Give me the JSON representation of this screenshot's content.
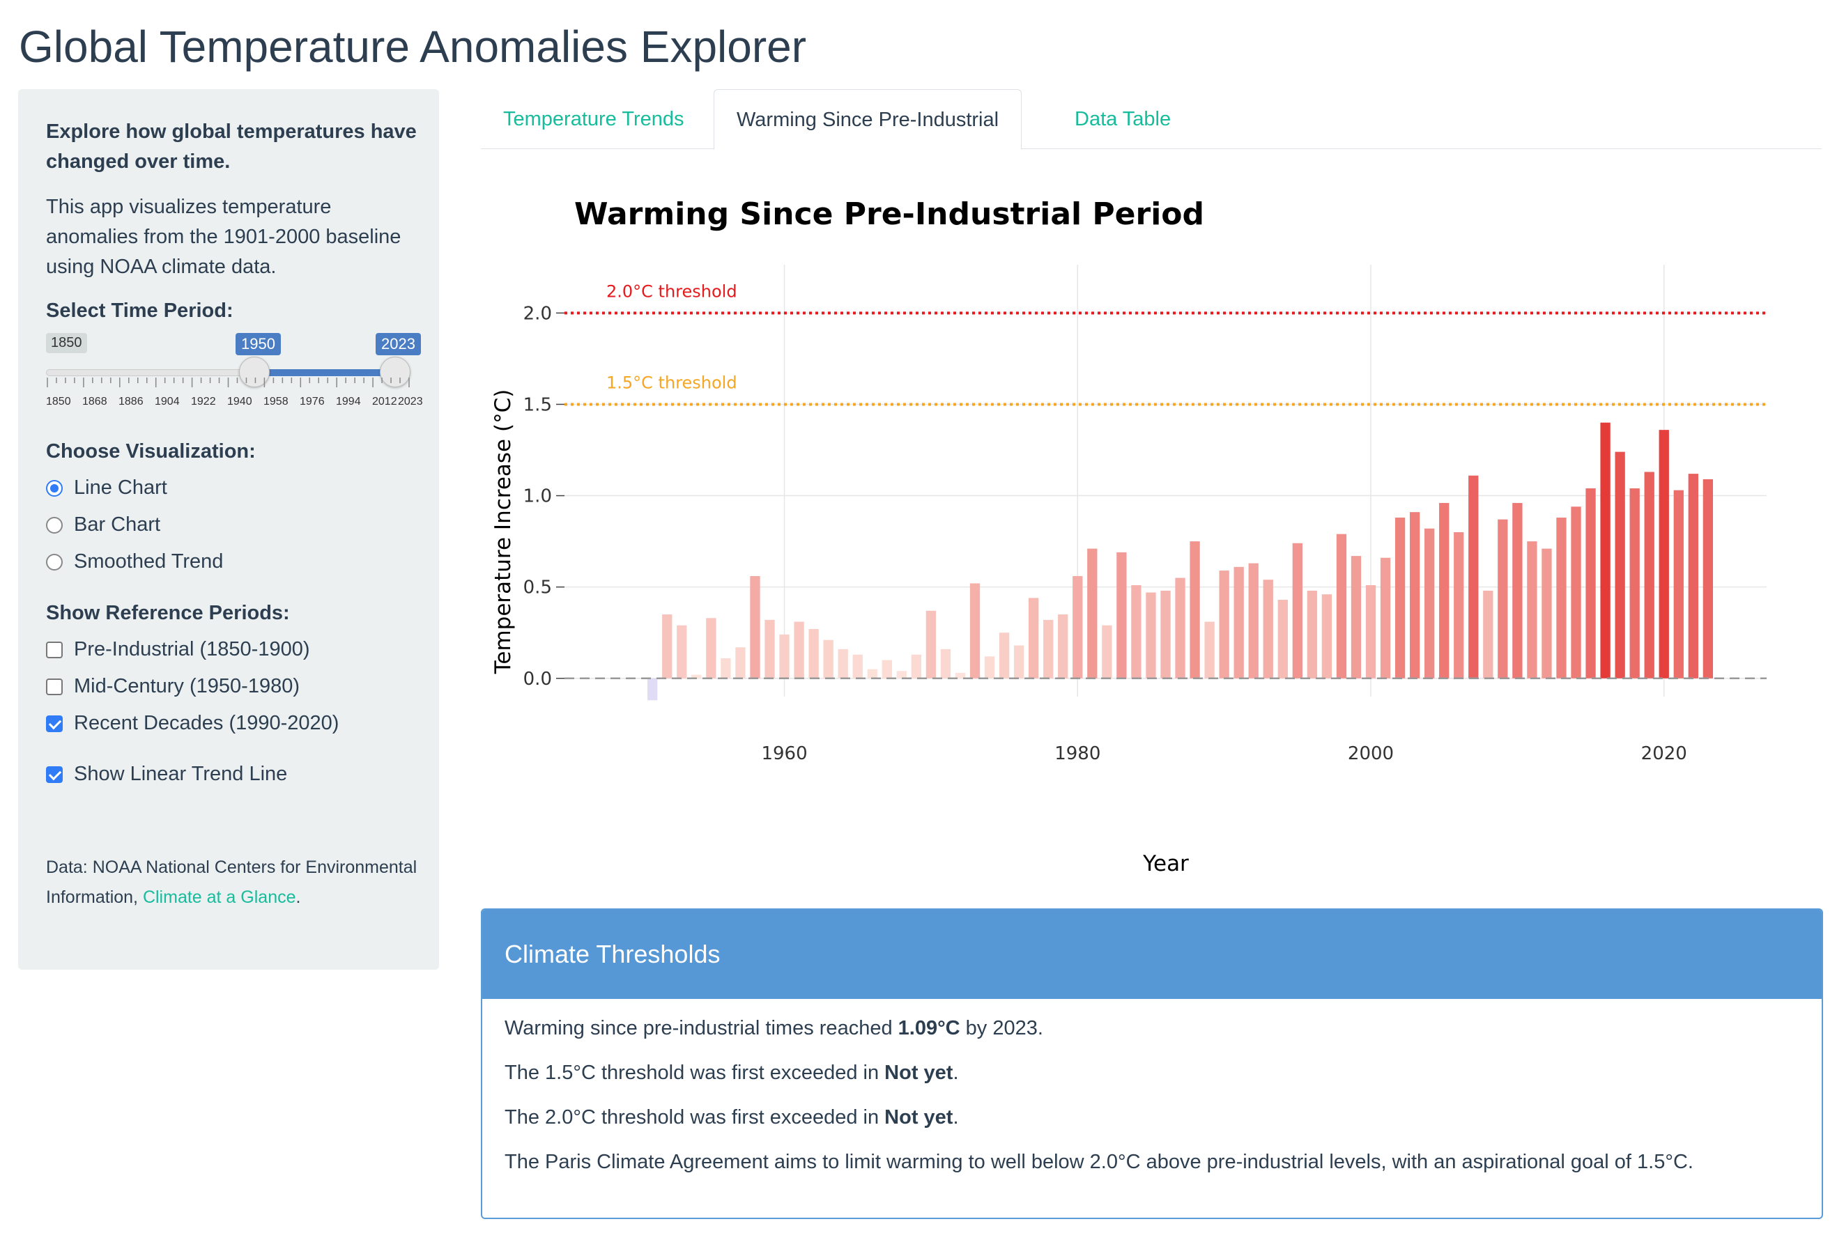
{
  "app": {
    "title": "Global Temperature Anomalies Explorer"
  },
  "sidebar": {
    "intro_heading": "Explore how global temperatures have changed over time.",
    "intro_text": "This app visualizes temperature anomalies from the 1901-2000 baseline using NOAA climate data.",
    "time_period": {
      "label": "Select Time Period:",
      "min": "1850",
      "selected_from": "1950",
      "selected_to": "2023",
      "tick_labels": [
        "1850",
        "1868",
        "1886",
        "1904",
        "1922",
        "1940",
        "1958",
        "1976",
        "1994",
        "2012",
        "2023"
      ]
    },
    "visualization": {
      "label": "Choose Visualization:",
      "options": [
        {
          "label": "Line Chart",
          "checked": true
        },
        {
          "label": "Bar Chart",
          "checked": false
        },
        {
          "label": "Smoothed Trend",
          "checked": false
        }
      ]
    },
    "reference_periods": {
      "label": "Show Reference Periods:",
      "options": [
        {
          "label": "Pre-Industrial (1850-1900)",
          "checked": false
        },
        {
          "label": "Mid-Century (1950-1980)",
          "checked": false
        },
        {
          "label": "Recent Decades (1990-2020)",
          "checked": true
        }
      ]
    },
    "trend_line": {
      "label": "Show Linear Trend Line",
      "checked": true
    },
    "source": {
      "prefix": "Data: NOAA National Centers for Environmental Information, ",
      "link": "Climate at a Glance",
      "suffix": "."
    }
  },
  "tabs": [
    {
      "label": "Temperature Trends",
      "active": false
    },
    {
      "label": "Warming Since Pre-Industrial",
      "active": true
    },
    {
      "label": "Data Table",
      "active": false
    }
  ],
  "colors": {
    "accent": "#18bc9c",
    "threshold_2": "#e41a1c",
    "threshold_15": "#f5a623",
    "card_header": "#5697d6"
  },
  "chart_data": {
    "type": "bar",
    "title": "Warming Since Pre-Industrial Period",
    "xlabel": "Year",
    "ylabel": "Temperature Increase (°C)",
    "xlim": [
      1945,
      2027
    ],
    "ylim": [
      -0.1,
      2.15
    ],
    "x_ticks": [
      "1960",
      "1980",
      "2000",
      "2020"
    ],
    "y_ticks": [
      "0.0",
      "0.5",
      "1.0",
      "1.5",
      "2.0"
    ],
    "thresholds": [
      {
        "label": "2.0°C threshold",
        "value": 2.0
      },
      {
        "label": "1.5°C threshold",
        "value": 1.5
      }
    ],
    "years": [
      1951,
      1952,
      1953,
      1954,
      1955,
      1956,
      1957,
      1958,
      1959,
      1960,
      1961,
      1962,
      1963,
      1964,
      1965,
      1966,
      1967,
      1968,
      1969,
      1970,
      1971,
      1972,
      1973,
      1974,
      1975,
      1976,
      1977,
      1978,
      1979,
      1980,
      1981,
      1982,
      1983,
      1984,
      1985,
      1986,
      1987,
      1988,
      1989,
      1990,
      1991,
      1992,
      1993,
      1994,
      1995,
      1996,
      1997,
      1998,
      1999,
      2000,
      2001,
      2002,
      2003,
      2004,
      2005,
      2006,
      2007,
      2008,
      2009,
      2010,
      2011,
      2012,
      2013,
      2014,
      2015,
      2016,
      2017,
      2018,
      2019,
      2020,
      2021,
      2022,
      2023
    ],
    "values": [
      -0.12,
      0.35,
      0.29,
      0.02,
      0.33,
      0.11,
      0.17,
      0.56,
      0.32,
      0.24,
      0.31,
      0.27,
      0.21,
      0.16,
      0.13,
      0.05,
      0.1,
      0.04,
      0.13,
      0.37,
      0.16,
      0.03,
      0.52,
      0.12,
      0.25,
      0.18,
      0.44,
      0.32,
      0.35,
      0.56,
      0.71,
      0.29,
      0.69,
      0.51,
      0.47,
      0.48,
      0.55,
      0.75,
      0.31,
      0.59,
      0.61,
      0.63,
      0.54,
      0.43,
      0.74,
      0.48,
      0.46,
      0.79,
      0.67,
      0.51,
      0.66,
      0.88,
      0.91,
      0.82,
      0.96,
      0.8,
      1.11,
      0.48,
      0.87,
      0.96,
      0.75,
      0.71,
      0.88,
      0.94,
      1.04,
      1.4,
      1.24,
      1.04,
      1.13,
      1.36,
      1.03,
      1.12,
      1.09
    ]
  },
  "thresholds_card": {
    "title": "Climate Thresholds",
    "line1_prefix": "Warming since pre-industrial times reached ",
    "line1_value": "1.09°C",
    "line1_suffix": " by 2023.",
    "line2_prefix": "The 1.5°C threshold was first exceeded in ",
    "line2_value": "Not yet",
    "line2_suffix": ".",
    "line3_prefix": "The 2.0°C threshold was first exceeded in ",
    "line3_value": "Not yet",
    "line3_suffix": ".",
    "line4": "The Paris Climate Agreement aims to limit warming to well below 2.0°C above pre-industrial levels, with an aspirational goal of 1.5°C."
  }
}
